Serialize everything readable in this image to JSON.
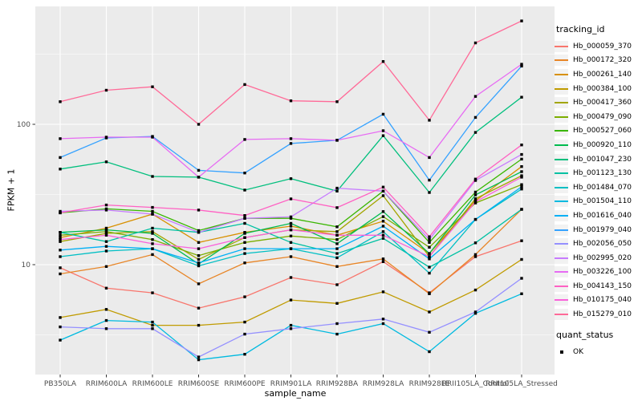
{
  "legend": {
    "tracking_title": "tracking_id",
    "quant_title": "quant_status",
    "quant_label": "OK",
    "quant_marker": "black-square",
    "key_background": "#F2F2F2"
  },
  "chart_data": {
    "type": "line",
    "title": "",
    "xlabel": "sample_name",
    "ylabel": "FPKM + 1",
    "y_scale": "log10",
    "y_major_ticks": [
      10,
      100
    ],
    "y_minor_gridlines": [
      3.162,
      31.62,
      316.2
    ],
    "ylim": [
      1.6,
      700
    ],
    "grid": true,
    "legend_position": "right",
    "panel_background": "#EBEBEB",
    "grid_color": "#FFFFFF",
    "tick_color": "#333333",
    "tick_label_color": "#4D4D4D",
    "point_color": "#000000",
    "point_shape": "square",
    "x_categories": [
      "PB350LA",
      "RRIM600LA",
      "RRIM600LE",
      "RRIM600SE",
      "RRIM600PE",
      "RRIM901LA",
      "RRIM928BA",
      "RRIM928LA",
      "RRIM928LE",
      "RRII105LA_Control",
      "RRII105LA_Stressed"
    ],
    "series": [
      {
        "name": "Hb_000059_370",
        "color": "#F8766D",
        "quant_status": "OK",
        "values": [
          9.5,
          6.8,
          6.3,
          4.9,
          5.9,
          8.1,
          7.2,
          10.5,
          6.3,
          11.4,
          14.8
        ]
      },
      {
        "name": "Hb_000172_320",
        "color": "#E88526",
        "quant_status": "OK",
        "values": [
          8.6,
          9.7,
          11.8,
          7.3,
          10.3,
          11.4,
          9.7,
          11.0,
          6.2,
          11.8,
          24.8
        ]
      },
      {
        "name": "Hb_000261_140",
        "color": "#D89000",
        "quant_status": "OK",
        "values": [
          15.6,
          18.2,
          22.9,
          14.4,
          17.0,
          18.8,
          16.2,
          20.4,
          12.0,
          28.5,
          50.0
        ]
      },
      {
        "name": "Hb_000384_100",
        "color": "#C09B00",
        "quant_status": "OK",
        "values": [
          4.2,
          4.8,
          3.7,
          3.7,
          3.9,
          5.6,
          5.3,
          6.4,
          4.6,
          6.6,
          10.9
        ]
      },
      {
        "name": "Hb_000417_360",
        "color": "#A3A500",
        "quant_status": "OK",
        "values": [
          14.6,
          16.7,
          17.2,
          10.9,
          15.6,
          17.7,
          17.2,
          31.0,
          11.4,
          29.5,
          43.0
        ]
      },
      {
        "name": "Hb_000479_090",
        "color": "#7CAE00",
        "quant_status": "OK",
        "values": [
          16.2,
          17.2,
          15.1,
          11.6,
          14.4,
          16.0,
          15.1,
          22.0,
          13.3,
          27.5,
          37.2
        ]
      },
      {
        "name": "Hb_000527_060",
        "color": "#39B600",
        "quant_status": "OK",
        "values": [
          23.4,
          25.0,
          24.0,
          17.5,
          21.4,
          21.4,
          18.6,
          33.4,
          14.4,
          32.9,
          56.5
        ]
      },
      {
        "name": "Hb_000920_110",
        "color": "#00BB4E",
        "quant_status": "OK",
        "values": [
          17.0,
          17.7,
          16.7,
          10.1,
          16.7,
          19.7,
          14.1,
          23.9,
          12.0,
          31.4,
          46.0
        ]
      },
      {
        "name": "Hb_001047_230",
        "color": "#00BF7D",
        "quant_status": "OK",
        "values": [
          48,
          54,
          42.5,
          42,
          34,
          41,
          33.4,
          83,
          32.7,
          87.6,
          156
        ]
      },
      {
        "name": "Hb_001123_130",
        "color": "#00C1A3",
        "quant_status": "OK",
        "values": [
          17.0,
          14.6,
          18.2,
          17.0,
          19.7,
          14.4,
          12.0,
          15.4,
          9.6,
          14.3,
          24.8
        ]
      },
      {
        "name": "Hb_001484_070",
        "color": "#00BFC4",
        "quant_status": "OK",
        "values": [
          11.4,
          12.5,
          13.0,
          9.8,
          12.0,
          13.0,
          11.2,
          17.2,
          8.7,
          21.0,
          34.6
        ]
      },
      {
        "name": "Hb_001504_110",
        "color": "#00BAE0",
        "quant_status": "OK",
        "values": [
          2.9,
          4.0,
          3.9,
          2.1,
          2.3,
          3.7,
          3.2,
          3.8,
          2.4,
          4.5,
          6.2
        ]
      },
      {
        "name": "Hb_001616_040",
        "color": "#00B0F6",
        "quant_status": "OK",
        "values": [
          12.7,
          13.5,
          13.0,
          10.3,
          13.0,
          13.0,
          13.0,
          18.8,
          11.0,
          21.0,
          35.9
        ]
      },
      {
        "name": "Hb_001979_040",
        "color": "#35A2FF",
        "quant_status": "OK",
        "values": [
          58,
          80,
          82,
          47,
          45,
          73,
          77,
          118,
          40,
          112,
          260
        ]
      },
      {
        "name": "Hb_002056_050",
        "color": "#9590FF",
        "quant_status": "OK",
        "values": [
          3.6,
          3.5,
          3.5,
          2.2,
          3.2,
          3.5,
          3.8,
          4.1,
          3.3,
          4.6,
          8.0
        ]
      },
      {
        "name": "Hb_002995_020",
        "color": "#C77CFF",
        "quant_status": "OK",
        "values": [
          24.0,
          24.5,
          22.9,
          17.0,
          21.4,
          21.9,
          35.1,
          33.4,
          15.1,
          39.8,
          61.0
        ]
      },
      {
        "name": "Hb_003226_100",
        "color": "#E76BF3",
        "quant_status": "OK",
        "values": [
          79,
          81,
          81,
          42,
          78,
          79,
          77,
          90,
          58,
          158,
          268
        ]
      },
      {
        "name": "Hb_004143_150",
        "color": "#FF61C3",
        "quant_status": "OK",
        "values": [
          23.4,
          26.6,
          25.6,
          24.5,
          22.4,
          29.4,
          25.5,
          35.7,
          15.8,
          40.7,
          71.3
        ]
      },
      {
        "name": "Hb_010175_040",
        "color": "#FA62DB",
        "quant_status": "OK",
        "values": [
          15.1,
          16.2,
          14.1,
          13.0,
          15.6,
          17.7,
          16.2,
          16.2,
          11.4,
          28.0,
          42.0
        ]
      },
      {
        "name": "Hb_015279_010",
        "color": "#FF6A98",
        "quant_status": "OK",
        "values": [
          145,
          175,
          185,
          100,
          192,
          147,
          145,
          280,
          107,
          380,
          545
        ]
      }
    ]
  }
}
